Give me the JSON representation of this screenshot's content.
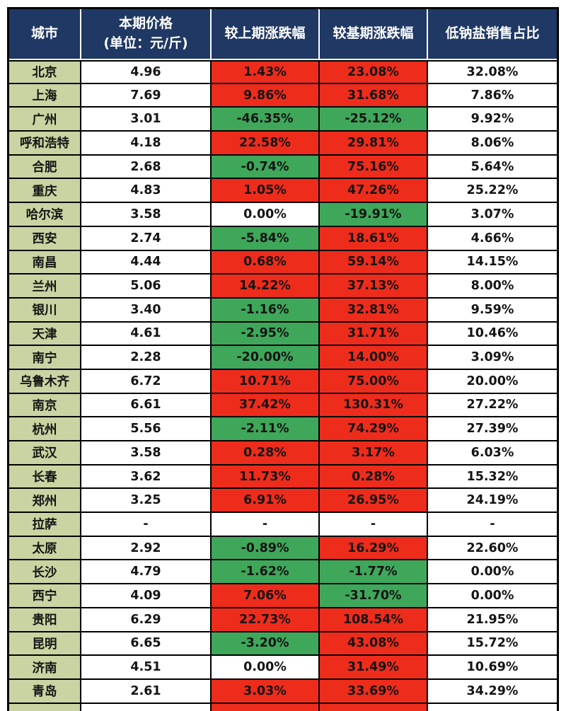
{
  "header": {
    "cols": [
      {
        "label": "城市"
      },
      {
        "label": "本期价格",
        "sublabel": "(单位：元/斤)"
      },
      {
        "label": "较上期涨跌幅"
      },
      {
        "label": "较基期涨跌幅"
      },
      {
        "label": "低钠盐销售占比"
      }
    ]
  },
  "colors": {
    "header_bg": "#1F3864",
    "header_text": "#FFFFFF",
    "city_cell_bg": "#C9D4A2",
    "positive_bg": "#EE2C1C",
    "negative_bg": "#3FA75A",
    "neutral_bg": "#FFFFFF",
    "grid_border": "#000000"
  },
  "chart_data": {
    "type": "table",
    "title": "",
    "columns": [
      "城市",
      "本期价格(单位：元/斤)",
      "较上期涨跌幅",
      "较基期涨跌幅",
      "低钠盐销售占比"
    ],
    "fill_rule": "较上期涨跌幅/较基期涨跌幅 cells: red if value > 0, green if value < 0, white if 0.00% or -",
    "rows": [
      [
        "北京",
        "4.96",
        "1.43%",
        "23.08%",
        "32.08%"
      ],
      [
        "上海",
        "7.69",
        "9.86%",
        "31.68%",
        "7.86%"
      ],
      [
        "广州",
        "3.01",
        "-46.35%",
        "-25.12%",
        "9.92%"
      ],
      [
        "呼和浩特",
        "4.18",
        "22.58%",
        "29.81%",
        "8.06%"
      ],
      [
        "合肥",
        "2.68",
        "-0.74%",
        "75.16%",
        "5.64%"
      ],
      [
        "重庆",
        "4.83",
        "1.05%",
        "47.26%",
        "25.22%"
      ],
      [
        "哈尔滨",
        "3.58",
        "0.00%",
        "-19.91%",
        "3.07%"
      ],
      [
        "西安",
        "2.74",
        "-5.84%",
        "18.61%",
        "4.66%"
      ],
      [
        "南昌",
        "4.44",
        "0.68%",
        "59.14%",
        "14.15%"
      ],
      [
        "兰州",
        "5.06",
        "14.22%",
        "37.13%",
        "8.00%"
      ],
      [
        "银川",
        "3.40",
        "-1.16%",
        "32.81%",
        "9.59%"
      ],
      [
        "天津",
        "4.61",
        "-2.95%",
        "31.71%",
        "10.46%"
      ],
      [
        "南宁",
        "2.28",
        "-20.00%",
        "14.00%",
        "3.09%"
      ],
      [
        "乌鲁木齐",
        "6.72",
        "10.71%",
        "75.00%",
        "20.00%"
      ],
      [
        "南京",
        "6.61",
        "37.42%",
        "130.31%",
        "27.22%"
      ],
      [
        "杭州",
        "5.56",
        "-2.11%",
        "74.29%",
        "27.39%"
      ],
      [
        "武汉",
        "3.58",
        "0.28%",
        "3.17%",
        "6.03%"
      ],
      [
        "长春",
        "3.62",
        "11.73%",
        "0.28%",
        "15.32%"
      ],
      [
        "郑州",
        "3.25",
        "6.91%",
        "26.95%",
        "24.19%"
      ],
      [
        "拉萨",
        "-",
        "-",
        "-",
        "-"
      ],
      [
        "太原",
        "2.92",
        "-0.89%",
        "16.29%",
        "22.60%"
      ],
      [
        "长沙",
        "4.79",
        "-1.62%",
        "-1.77%",
        "0.00%"
      ],
      [
        "西宁",
        "4.09",
        "7.06%",
        "-31.70%",
        "0.00%"
      ],
      [
        "贵阳",
        "6.29",
        "22.73%",
        "108.54%",
        "21.95%"
      ],
      [
        "昆明",
        "6.65",
        "-3.20%",
        "43.08%",
        "15.72%"
      ],
      [
        "济南",
        "4.51",
        "0.00%",
        "31.49%",
        "10.69%"
      ],
      [
        "青岛",
        "2.61",
        "3.03%",
        "33.69%",
        "34.29%"
      ]
    ]
  }
}
